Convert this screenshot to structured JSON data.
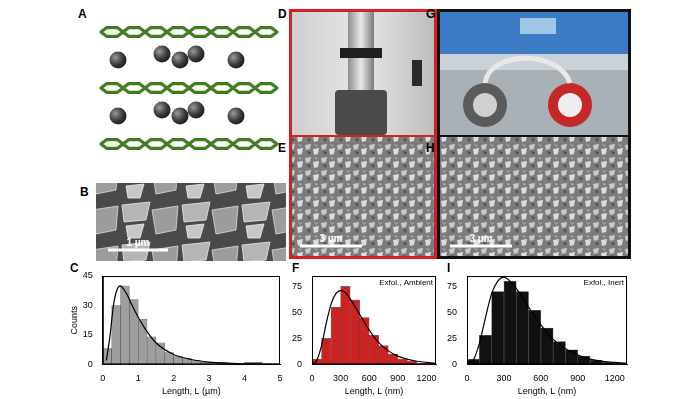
{
  "panel_labels": [
    "A",
    "B",
    "D",
    "E",
    "G",
    "H"
  ],
  "scale_bars": {
    "B": "1 µm",
    "E": "3 µm",
    "H": "3 µm"
  },
  "chart_data": [
    {
      "panel": "C",
      "type": "histogram",
      "color": "#9e9e9e",
      "grid": false,
      "xlabel": "Length, L (µm)",
      "ylabel": "Counts",
      "bins": [
        0,
        0.25,
        0.5,
        0.75,
        1.0,
        1.25,
        1.5,
        1.75,
        2.0,
        2.25,
        2.5,
        2.75,
        3.0,
        3.25,
        3.5,
        3.75,
        4.0,
        4.25,
        4.5
      ],
      "counts": [
        8,
        30,
        40,
        33,
        23,
        14,
        11,
        6,
        4,
        3,
        2,
        1,
        1,
        1,
        0,
        0,
        1,
        1
      ],
      "fit": {
        "color": "#000000",
        "x": [
          0.1,
          0.2,
          0.3,
          0.4,
          0.5,
          0.6,
          0.7,
          0.8,
          1.0,
          1.2,
          1.5,
          2.0,
          2.5,
          3.0,
          3.5,
          4.0,
          4.5,
          5.0
        ],
        "values": [
          2,
          14,
          30,
          38,
          40,
          38,
          35,
          31,
          24,
          18,
          11,
          5,
          2.5,
          1.2,
          0.6,
          0.3,
          0.1,
          0.05
        ]
      },
      "xlim": [
        0,
        5
      ],
      "xticks": [
        0,
        1,
        2,
        3,
        4,
        5
      ],
      "ylim": [
        0,
        45
      ],
      "yticks": [
        0,
        15,
        30,
        45
      ]
    },
    {
      "panel": "F",
      "type": "histogram",
      "color": "#cc2222",
      "grid": false,
      "xlabel": "Length, L (nm)",
      "annotation": "Exfol., Ambient",
      "bins": [
        0,
        100,
        200,
        300,
        400,
        500,
        600,
        700,
        800,
        900,
        1000,
        1100,
        1200,
        1300
      ],
      "counts": [
        5,
        25,
        55,
        75,
        62,
        45,
        28,
        18,
        10,
        5,
        3,
        1,
        1
      ],
      "fit": {
        "color": "#000000",
        "x": [
          0,
          50,
          100,
          150,
          200,
          250,
          300,
          350,
          400,
          500,
          600,
          700,
          800,
          900,
          1000,
          1100,
          1200,
          1300
        ],
        "values": [
          0,
          4,
          18,
          40,
          58,
          68,
          71,
          69,
          63,
          48,
          33,
          21,
          13,
          8,
          5,
          3,
          2,
          1
        ]
      },
      "xlim": [
        0,
        1300
      ],
      "xticks": [
        0,
        300,
        600,
        900,
        1200
      ],
      "ylim": [
        0,
        85
      ],
      "yticks": [
        0,
        25,
        50,
        75
      ]
    },
    {
      "panel": "I",
      "type": "histogram",
      "color": "#111111",
      "grid": false,
      "xlabel": "Length, L (nm)",
      "annotation": "Exfol., Inert",
      "bins": [
        0,
        100,
        200,
        300,
        400,
        500,
        600,
        700,
        800,
        900,
        1000,
        1100,
        1200,
        1300
      ],
      "counts": [
        5,
        28,
        70,
        80,
        70,
        52,
        35,
        22,
        14,
        8,
        4,
        2,
        1
      ],
      "fit": {
        "color": "#000000",
        "x": [
          0,
          50,
          100,
          150,
          200,
          250,
          300,
          350,
          400,
          500,
          600,
          700,
          800,
          900,
          1000,
          1100,
          1200,
          1300
        ],
        "values": [
          0,
          4,
          20,
          45,
          68,
          80,
          84,
          80,
          73,
          55,
          38,
          24,
          15,
          9,
          5,
          3,
          2,
          1
        ]
      },
      "xlim": [
        0,
        1300
      ],
      "xticks": [
        0,
        300,
        600,
        900,
        1200
      ],
      "ylim": [
        0,
        85
      ],
      "yticks": [
        0,
        25,
        50,
        75
      ]
    }
  ]
}
